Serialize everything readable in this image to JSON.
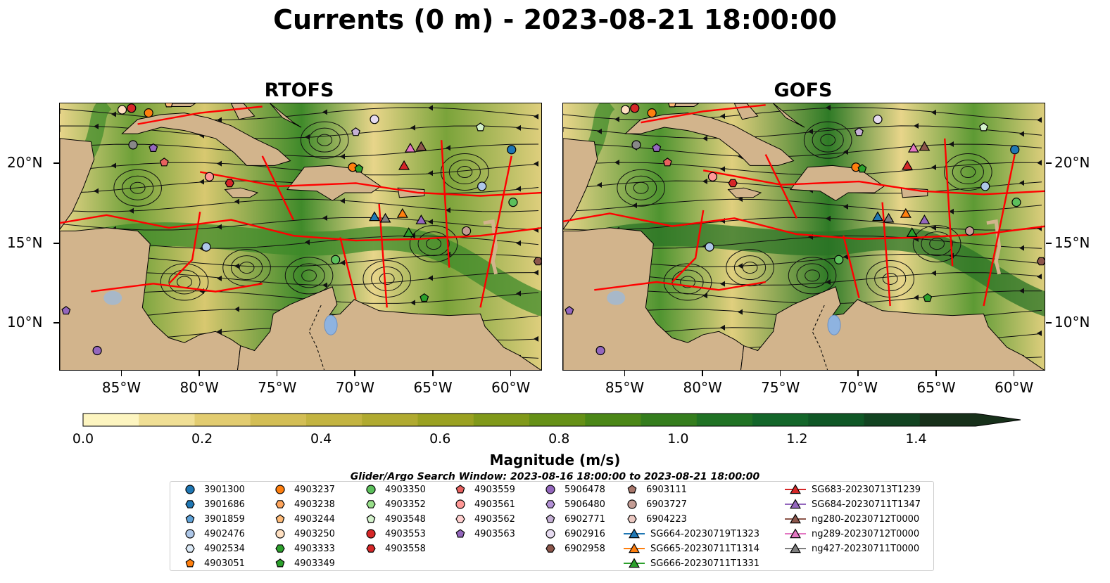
{
  "title": "Currents (0 m) - 2023-08-21 18:00:00",
  "panels": [
    {
      "id": "rtofs",
      "title": "RTOFS"
    },
    {
      "id": "gofs",
      "title": "GOFS"
    }
  ],
  "map_extent": {
    "lon": [
      -89,
      -58
    ],
    "lat": [
      7,
      23.8
    ]
  },
  "lon_ticks": [
    "85°W",
    "80°W",
    "75°W",
    "70°W",
    "65°W",
    "60°W"
  ],
  "lon_tick_values": [
    -85,
    -80,
    -75,
    -70,
    -65,
    -60
  ],
  "lat_ticks": [
    "20°N",
    "15°N",
    "10°N"
  ],
  "lat_tick_values": [
    20,
    15,
    10
  ],
  "colorbar": {
    "label": "Magnitude (m/s)",
    "ticks": [
      "0.0",
      "0.2",
      "0.4",
      "0.6",
      "0.8",
      "1.0",
      "1.2",
      "1.4"
    ],
    "tick_values": [
      0,
      0.2,
      0.4,
      0.6,
      0.8,
      1.0,
      1.2,
      1.4
    ],
    "range": [
      0,
      1.5
    ],
    "colors": [
      "#fdf5c0",
      "#f0df95",
      "#e2cc70",
      "#d3be55",
      "#c3b441",
      "#b0aa30",
      "#9aa121",
      "#80991a",
      "#659016",
      "#4b8717",
      "#347d1d",
      "#207224",
      "#13662a",
      "#0f5726",
      "#124421",
      "#17301a"
    ],
    "extend": "max"
  },
  "search_window": "Glider/Argo Search Window: 2023-08-16 18:00:00 to 2023-08-21 18:00:00",
  "legend": [
    {
      "label": "3901300",
      "marker": "circle",
      "color": "#1f77b4"
    },
    {
      "label": "3901686",
      "marker": "hexagon",
      "color": "#1f77b4"
    },
    {
      "label": "3901859",
      "marker": "pentagon",
      "color": "#5fa2d8"
    },
    {
      "label": "4902476",
      "marker": "circle",
      "color": "#aec7e8"
    },
    {
      "label": "4902534",
      "marker": "hexagon",
      "color": "#dbe9f6"
    },
    {
      "label": "4903051",
      "marker": "pentagon",
      "color": "#ff7f0e"
    },
    {
      "label": "4903237",
      "marker": "circle",
      "color": "#ff7f0e"
    },
    {
      "label": "4903238",
      "marker": "hexagon",
      "color": "#ffa55c"
    },
    {
      "label": "4903244",
      "marker": "pentagon",
      "color": "#ffbb78"
    },
    {
      "label": "4903250",
      "marker": "circle",
      "color": "#ffe0c2"
    },
    {
      "label": "4903333",
      "marker": "hexagon",
      "color": "#2ca02c"
    },
    {
      "label": "4903349",
      "marker": "pentagon",
      "color": "#2ca02c"
    },
    {
      "label": "4903350",
      "marker": "circle",
      "color": "#5cc05c"
    },
    {
      "label": "4903352",
      "marker": "hexagon",
      "color": "#98df8a"
    },
    {
      "label": "4903548",
      "marker": "pentagon",
      "color": "#d4f2cc"
    },
    {
      "label": "4903553",
      "marker": "circle",
      "color": "#d62728"
    },
    {
      "label": "4903558",
      "marker": "hexagon",
      "color": "#d62728"
    },
    {
      "label": "4903559",
      "marker": "pentagon",
      "color": "#e8615f"
    },
    {
      "label": "4903561",
      "marker": "circle",
      "color": "#ff9896"
    },
    {
      "label": "4903562",
      "marker": "hexagon",
      "color": "#ffd0cf"
    },
    {
      "label": "4903563",
      "marker": "pentagon",
      "color": "#9467bd"
    },
    {
      "label": "5906478",
      "marker": "circle",
      "color": "#9467bd"
    },
    {
      "label": "5906480",
      "marker": "hexagon",
      "color": "#b391d6"
    },
    {
      "label": "6902771",
      "marker": "pentagon",
      "color": "#c5b0d5"
    },
    {
      "label": "6902916",
      "marker": "circle",
      "color": "#e6dbf0"
    },
    {
      "label": "6902958",
      "marker": "hexagon",
      "color": "#8c564b"
    },
    {
      "label": "6903111",
      "marker": "pentagon",
      "color": "#a9786c"
    },
    {
      "label": "6903727",
      "marker": "circle",
      "color": "#c49c94"
    },
    {
      "label": "6904223",
      "marker": "hexagon",
      "color": "#ecc9c2"
    },
    {
      "label": "SG664-20230719T1323",
      "marker": "triangle",
      "color": "#1f77b4"
    },
    {
      "label": "SG665-20230711T1314",
      "marker": "triangle",
      "color": "#ff7f0e"
    },
    {
      "label": "SG666-20230711T1331",
      "marker": "triangle",
      "color": "#2ca02c"
    },
    {
      "label": "SG683-20230713T1239",
      "marker": "triangle",
      "color": "#d62728"
    },
    {
      "label": "SG684-20230711T1347",
      "marker": "triangle",
      "color": "#9467bd"
    },
    {
      "label": "ng280-20230712T0000",
      "marker": "triangle",
      "color": "#8c564b"
    },
    {
      "label": "ng289-20230712T0000",
      "marker": "triangle",
      "color": "#e377c2"
    },
    {
      "label": "ng427-20230711T0000",
      "marker": "triangle",
      "color": "#7f7f7f"
    }
  ],
  "observations": [
    {
      "id": "3901300",
      "lon": -60.0,
      "lat": 20.9
    },
    {
      "id": "4902476",
      "lon": -61.9,
      "lat": 18.6
    },
    {
      "id": "4902476",
      "lon": -79.6,
      "lat": 14.8
    },
    {
      "id": "4903250",
      "lon": -85.0,
      "lat": 23.4
    },
    {
      "id": "4903237",
      "lon": -83.3,
      "lat": 23.2
    },
    {
      "id": "4903244",
      "lon": -82.0,
      "lat": 23.8
    },
    {
      "id": "4903553",
      "lon": -84.4,
      "lat": 23.5
    },
    {
      "id": "4904223",
      "lon": -84.3,
      "lat": 21.2
    },
    {
      "id": "4903563",
      "lon": -83.0,
      "lat": 21.0
    },
    {
      "id": "4903559",
      "lon": -82.3,
      "lat": 20.1
    },
    {
      "id": "4903561",
      "lon": -79.4,
      "lat": 19.2
    },
    {
      "id": "4903558",
      "lon": -78.1,
      "lat": 18.8
    },
    {
      "id": "4903237",
      "lon": -70.2,
      "lat": 19.8
    },
    {
      "id": "4903349",
      "lon": -69.8,
      "lat": 19.7
    },
    {
      "id": "6902771",
      "lon": -70.0,
      "lat": 22.0
    },
    {
      "id": "6902916",
      "lon": -68.8,
      "lat": 22.8
    },
    {
      "id": "4903548",
      "lon": -62.0,
      "lat": 22.3
    },
    {
      "id": "6903727",
      "lon": -62.9,
      "lat": 15.8
    },
    {
      "id": "6902958",
      "lon": -58.3,
      "lat": 13.9
    },
    {
      "id": "4903350",
      "lon": -59.9,
      "lat": 17.6
    },
    {
      "id": "4903350",
      "lon": -71.3,
      "lat": 14.0
    },
    {
      "id": "4903349",
      "lon": -65.6,
      "lat": 11.6
    },
    {
      "id": "4903563",
      "lon": -88.6,
      "lat": 10.8
    },
    {
      "id": "5906478",
      "lon": -86.6,
      "lat": 8.3
    },
    {
      "id": "SG664-20230719T1323",
      "lon": -68.8,
      "lat": 16.7
    },
    {
      "id": "ng427-20230711T0000",
      "lon": -68.1,
      "lat": 16.6
    },
    {
      "id": "SG665-20230711T1314",
      "lon": -67.0,
      "lat": 16.9
    },
    {
      "id": "SG666-20230711T1331",
      "lon": -66.6,
      "lat": 15.7
    },
    {
      "id": "SG684-20230711T1347",
      "lon": -65.8,
      "lat": 16.5
    },
    {
      "id": "SG683-20230713T1239",
      "lon": -66.9,
      "lat": 19.9
    },
    {
      "id": "ng289-20230712T0000",
      "lon": -66.5,
      "lat": 21.0
    },
    {
      "id": "ng280-20230712T0000",
      "lon": -65.8,
      "lat": 21.1
    }
  ]
}
